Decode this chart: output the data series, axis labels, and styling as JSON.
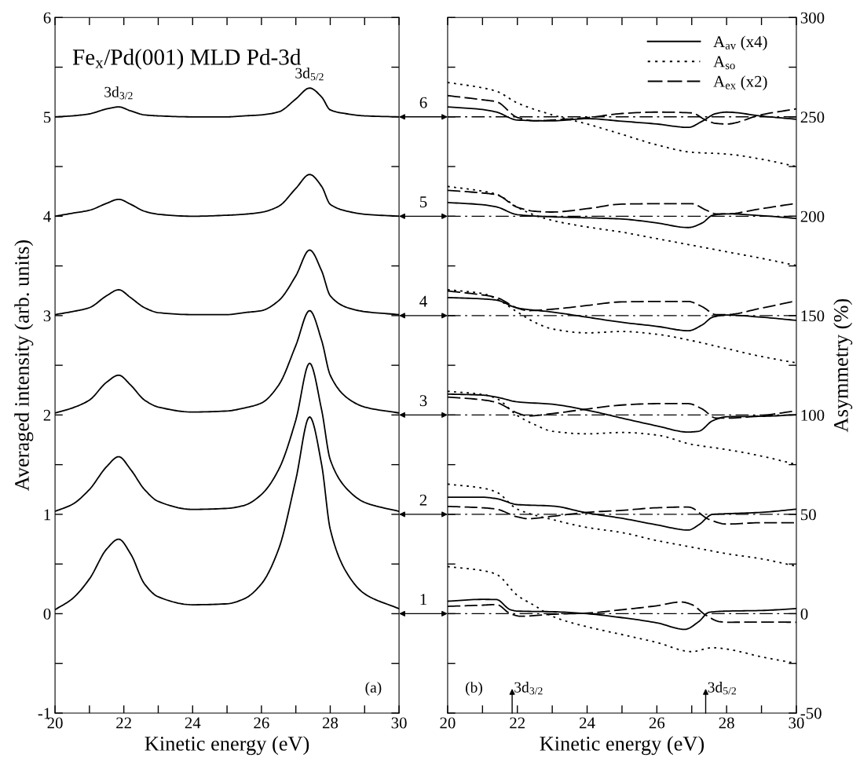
{
  "chart_data": [
    {
      "type": "line",
      "title": "Fe$_{x}$/Pd(001) MLD Pd-3d",
      "xlabel": "Kinetic energy (eV)",
      "ylabel": "Averaged intensity (arb. units)",
      "x": [
        20,
        20.5,
        21,
        21.5,
        21.85,
        22.2,
        22.6,
        23,
        24,
        25,
        25.5,
        26,
        26.5,
        27,
        27.4,
        27.75,
        28,
        28.5,
        29,
        30
      ],
      "series": [
        {
          "color": "#000000",
          "values": [
            0.04,
            0.15,
            0.35,
            0.65,
            0.75,
            0.6,
            0.3,
            0.17,
            0.09,
            0.1,
            0.15,
            0.3,
            0.65,
            1.35,
            1.98,
            1.5,
            0.85,
            0.4,
            0.2,
            0.05
          ]
        },
        {
          "color": "#000000",
          "values": [
            1.03,
            1.1,
            1.25,
            1.48,
            1.58,
            1.45,
            1.25,
            1.13,
            1.05,
            1.06,
            1.09,
            1.2,
            1.45,
            1.95,
            2.52,
            2.05,
            1.55,
            1.25,
            1.12,
            1.03
          ]
        },
        {
          "color": "#000000",
          "values": [
            2.02,
            2.07,
            2.15,
            2.33,
            2.4,
            2.3,
            2.15,
            2.08,
            2.03,
            2.04,
            2.07,
            2.12,
            2.3,
            2.7,
            3.05,
            2.75,
            2.4,
            2.17,
            2.08,
            2.02
          ]
        },
        {
          "color": "#000000",
          "values": [
            3.01,
            3.04,
            3.08,
            3.2,
            3.26,
            3.18,
            3.08,
            3.03,
            3.01,
            3.01,
            3.03,
            3.05,
            3.15,
            3.4,
            3.66,
            3.45,
            3.2,
            3.08,
            3.04,
            3.01
          ]
        },
        {
          "color": "#000000",
          "values": [
            4.0,
            4.03,
            4.06,
            4.13,
            4.17,
            4.12,
            4.05,
            4.02,
            4.0,
            4.01,
            4.02,
            4.04,
            4.1,
            4.28,
            4.42,
            4.3,
            4.12,
            4.05,
            4.02,
            4.0
          ]
        },
        {
          "color": "#000000",
          "values": [
            5.0,
            5.01,
            5.03,
            5.08,
            5.1,
            5.06,
            5.02,
            5.01,
            5.0,
            5.0,
            5.01,
            5.02,
            5.05,
            5.18,
            5.29,
            5.2,
            5.07,
            5.03,
            5.01,
            5.0
          ]
        }
      ],
      "xlim": [
        20,
        30
      ],
      "ylim": [
        -1,
        6
      ],
      "xticks": [
        20,
        {
          "value": 21,
          "label": null
        },
        22,
        {
          "value": 23,
          "label": null
        },
        24,
        {
          "value": 25,
          "label": null
        },
        26,
        {
          "value": 27,
          "label": null
        },
        28,
        {
          "value": 29,
          "label": null
        },
        30
      ],
      "yticks": [
        -1,
        {
          "value": -0.5,
          "label": null
        },
        0,
        {
          "value": 0.5,
          "label": null
        },
        1,
        {
          "value": 1.5,
          "label": null
        },
        2,
        {
          "value": 2.5,
          "label": null
        },
        3,
        {
          "value": 3.5,
          "label": null
        },
        4,
        {
          "value": 4.5,
          "label": null
        },
        5,
        {
          "value": 5.5,
          "label": null
        },
        6
      ],
      "annotations": [
        {
          "text": "3d$_{3/2}$",
          "x": 21.85,
          "y": 5.1
        },
        {
          "text": "3d$_{5/2}$",
          "x": 27.4,
          "y": 5.29
        },
        "(a)",
        "1",
        "2",
        "3",
        "4",
        "5",
        "6"
      ],
      "grid": false,
      "legend": false,
      "marker": "none",
      "line_style": "solid"
    },
    {
      "type": "line",
      "xlabel": "Kinetic energy (eV)",
      "ylabel": "Asymmetry (%)",
      "series": [
        {
          "name": "A$_{av}$ (x4)",
          "color": "#000000",
          "line_style": "solid",
          "x": [
            20,
            21,
            21.4,
            21.8,
            22,
            23,
            24,
            25,
            26,
            26.8,
            27.2,
            27.5,
            28,
            29,
            30
          ],
          "values": [
            6.3,
            7.2,
            7.1,
            2,
            1.3,
            1,
            0,
            -2,
            -4.6,
            -7.9,
            -4,
            0.7,
            1.3,
            1.6,
            2.6
          ]
        },
        {
          "name": "A$_{so}$",
          "color": "#000000",
          "line_style": "dotted",
          "x": [
            20,
            21,
            21.4,
            22,
            22.5,
            23,
            24,
            25,
            26,
            27,
            27.6,
            28,
            29,
            30
          ],
          "values": [
            23.7,
            21.7,
            19.8,
            9.2,
            4,
            -1.3,
            -6.6,
            -10.5,
            -14.5,
            -19.1,
            -17.1,
            -17.8,
            -21.7,
            -25
          ]
        },
        {
          "name": "A$_{ex}$ (x2)",
          "color": "#000000",
          "line_style": "dashed",
          "x": [
            20,
            21,
            21.4,
            21.8,
            22.1,
            23,
            24,
            25,
            26,
            26.7,
            27,
            27.4,
            27.8,
            28,
            29,
            30
          ],
          "values": [
            3.7,
            4.3,
            4.6,
            0,
            -1.3,
            -0.3,
            0.3,
            2,
            4,
            5.9,
            4.6,
            -0.7,
            -4,
            -4.3,
            -4.2,
            -4.3
          ]
        },
        {
          "color": "#000000",
          "line_style": "solid",
          "x": [
            20,
            21,
            21.4,
            22,
            23,
            24,
            25,
            26,
            26.9,
            27.2,
            27.6,
            28,
            29,
            30
          ],
          "values": [
            58.6,
            58.6,
            57.9,
            54.9,
            54.2,
            50.7,
            48,
            44.7,
            42.1,
            44.7,
            50,
            50.3,
            51,
            52.6
          ]
        },
        {
          "color": "#000000",
          "line_style": "dashed",
          "x": [
            20,
            21,
            21.4,
            22,
            22.3,
            23,
            24,
            25,
            26,
            26.9,
            27.5,
            28,
            29,
            30
          ],
          "values": [
            54,
            53.3,
            52.6,
            48.7,
            47.8,
            49,
            51,
            52,
            53.3,
            53.7,
            47.4,
            45.1,
            45.8,
            45.8
          ]
        },
        {
          "color": "#000000",
          "line_style": "dotted",
          "x": [
            20,
            21,
            21.4,
            22,
            23,
            24,
            25,
            26,
            27,
            28,
            29,
            30
          ],
          "values": [
            65.2,
            63.2,
            61.2,
            52.6,
            47.4,
            43.4,
            40.8,
            36.8,
            33.5,
            30.2,
            27.6,
            23.9
          ]
        },
        {
          "color": "#000000",
          "line_style": "solid",
          "x": [
            20,
            21,
            21.4,
            22,
            23,
            24,
            25,
            26,
            26.9,
            27.2,
            27.6,
            28,
            29,
            30
          ],
          "values": [
            110.5,
            110,
            109,
            106.6,
            105.4,
            102.4,
            98.4,
            94.5,
            91.4,
            91.8,
            97.1,
            99.1,
            99.3,
            100.1
          ]
        },
        {
          "color": "#000000",
          "line_style": "dashed",
          "x": [
            20,
            21,
            21.4,
            22,
            22.3,
            23,
            24,
            25,
            26,
            26.9,
            27.3,
            27.7,
            28,
            29,
            30
          ],
          "values": [
            109,
            107.6,
            106.3,
            101,
            99.5,
            100.7,
            103,
            105,
            105.7,
            105.7,
            103,
            98.4,
            98.4,
            99.7,
            102.1
          ]
        },
        {
          "color": "#000000",
          "line_style": "dotted",
          "x": [
            20,
            21,
            21.4,
            22,
            22.5,
            23,
            24,
            25,
            26,
            27,
            28,
            29,
            30
          ],
          "values": [
            111.9,
            110.3,
            108.3,
            99.7,
            95.1,
            91.8,
            90.5,
            91.2,
            89.9,
            85.2,
            82.6,
            79.3,
            75.1
          ]
        },
        {
          "color": "#000000",
          "line_style": "solid",
          "x": [
            20,
            21,
            21.4,
            22,
            23,
            24,
            25,
            26,
            26.9,
            27.3,
            27.6,
            28,
            29,
            30
          ],
          "values": [
            159.1,
            158.4,
            157.8,
            153.8,
            151.8,
            149.2,
            146.6,
            144.6,
            142.4,
            145.3,
            149.2,
            150.3,
            149.2,
            147.6
          ]
        },
        {
          "color": "#000000",
          "line_style": "dashed",
          "x": [
            20,
            21,
            21.4,
            22,
            22.3,
            23,
            24,
            25,
            26,
            26.9,
            27.3,
            27.7,
            28,
            29,
            30
          ],
          "values": [
            162.4,
            160.4,
            159.1,
            153.8,
            152.5,
            153.2,
            155.1,
            156.9,
            157.1,
            157.1,
            154.5,
            150.5,
            150.5,
            153.8,
            157.4
          ]
        },
        {
          "color": "#000000",
          "line_style": "dotted",
          "x": [
            20,
            21,
            21.4,
            22,
            22.5,
            23,
            24,
            25,
            26,
            27,
            28,
            29,
            30
          ],
          "values": [
            163,
            161.1,
            158.4,
            151.8,
            146.6,
            143.3,
            141.3,
            142,
            140.6,
            137.4,
            133.4,
            129.4,
            126.2
          ]
        },
        {
          "color": "#000000",
          "line_style": "solid",
          "x": [
            20,
            21,
            21.4,
            22,
            23,
            24,
            25,
            26,
            26.9,
            27.3,
            27.6,
            28,
            29,
            30
          ],
          "values": [
            206.9,
            205.8,
            204.7,
            200.8,
            199.7,
            199.2,
            198.6,
            196.6,
            194.3,
            196.6,
            200.5,
            201.2,
            200.3,
            198.9
          ]
        },
        {
          "color": "#000000",
          "line_style": "dashed",
          "x": [
            20,
            21,
            21.4,
            22,
            22.5,
            23,
            24,
            25,
            26,
            27,
            27.4,
            27.7,
            28,
            29,
            30
          ],
          "values": [
            213,
            211.7,
            210.8,
            204.5,
            202.5,
            202.1,
            203.8,
            206.1,
            206.3,
            206.3,
            203.2,
            201.2,
            201.2,
            203.8,
            206.5
          ]
        },
        {
          "color": "#000000",
          "line_style": "dotted",
          "x": [
            20,
            21,
            21.4,
            22,
            22.5,
            23,
            24,
            25,
            26,
            27,
            28,
            29,
            30
          ],
          "values": [
            215,
            212.6,
            211.1,
            204.5,
            200.5,
            197.9,
            194.6,
            192,
            188.7,
            185.4,
            182.1,
            178.8,
            175.2
          ]
        },
        {
          "color": "#000000",
          "line_style": "solid",
          "x": [
            20,
            21,
            21.4,
            22,
            23,
            24,
            25,
            26,
            26.9,
            27.3,
            27.7,
            28,
            29,
            30
          ],
          "values": [
            255,
            253.7,
            252.4,
            248.4,
            248,
            249.1,
            247.8,
            246.4,
            244.7,
            247.8,
            251.7,
            252.4,
            250.4,
            248.8
          ]
        },
        {
          "color": "#000000",
          "line_style": "dashed",
          "x": [
            20,
            21,
            21.4,
            22,
            22.5,
            23,
            24,
            25,
            26,
            27,
            27.4,
            27.7,
            28,
            29,
            30
          ],
          "values": [
            260.7,
            258.6,
            257.6,
            249.7,
            248,
            248.4,
            249.6,
            251.7,
            252.4,
            252,
            248.4,
            246.7,
            246.4,
            251.1,
            254
          ]
        },
        {
          "color": "#000000",
          "line_style": "dotted",
          "x": [
            20,
            21,
            21.4,
            22,
            23,
            24,
            25,
            26,
            27,
            28,
            29,
            30
          ],
          "values": [
            267.3,
            264.6,
            262.9,
            257,
            251,
            246.4,
            241.2,
            235.9,
            232.2,
            231.3,
            228.7,
            225
          ]
        }
      ],
      "ref_lines": [
        {
          "axis": "y",
          "value": 0,
          "color": "#000000",
          "line_style": "dashdot"
        },
        {
          "axis": "y",
          "value": 50,
          "color": "#000000",
          "line_style": "dashdot"
        },
        {
          "axis": "y",
          "value": 100,
          "color": "#000000",
          "line_style": "dashdot"
        },
        {
          "axis": "y",
          "value": 150,
          "color": "#000000",
          "line_style": "dashdot"
        },
        {
          "axis": "y",
          "value": 200,
          "color": "#000000",
          "line_style": "dashdot"
        },
        {
          "axis": "y",
          "value": 250,
          "color": "#000000",
          "line_style": "dashdot"
        }
      ],
      "xlim": [
        20,
        30
      ],
      "ylim": [
        -50,
        300
      ],
      "xticks": [
        20,
        {
          "value": 21,
          "label": null
        },
        22,
        {
          "value": 23,
          "label": null
        },
        24,
        {
          "value": 25,
          "label": null
        },
        26,
        {
          "value": 27,
          "label": null
        },
        28,
        {
          "value": 29,
          "label": null
        },
        30
      ],
      "yticks": [
        -50,
        {
          "value": -25,
          "label": null
        },
        0,
        {
          "value": 25,
          "label": null
        },
        50,
        {
          "value": 75,
          "label": null
        },
        100,
        {
          "value": 125,
          "label": null
        },
        150,
        {
          "value": 175,
          "label": null
        },
        200,
        {
          "value": 225,
          "label": null
        },
        250,
        {
          "value": 275,
          "label": null
        },
        300
      ],
      "annotations": [
        "(b)",
        "3d$_{3/2}$",
        "3d$_{5/2}$"
      ],
      "grid": false,
      "legend": "top right",
      "marker": "none"
    }
  ]
}
